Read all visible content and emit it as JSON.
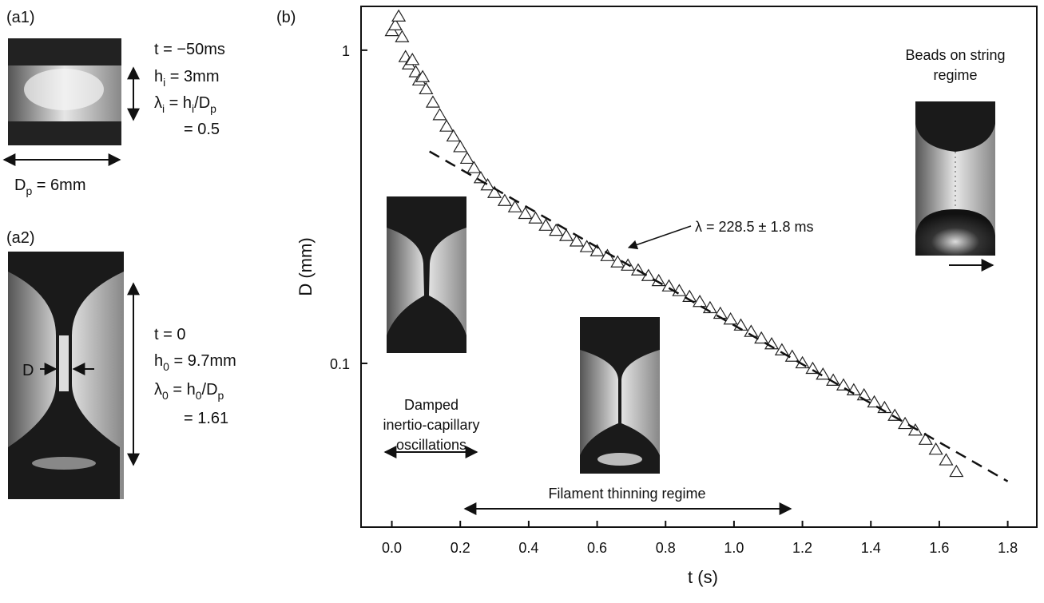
{
  "panels": {
    "a1": {
      "label": "(a1)",
      "lines": [
        [
          "t = −50ms"
        ],
        [
          "h",
          "i",
          " = 3mm"
        ],
        [
          "λ",
          "i",
          " = h",
          "i",
          "/D",
          "p"
        ],
        [
          "= 0.5"
        ]
      ],
      "width": [
        "D",
        "p",
        " = 6mm"
      ]
    },
    "a2": {
      "label": "(a2)",
      "lines": [
        [
          "t = 0"
        ],
        [
          "h",
          "0",
          " = 9.7mm"
        ],
        [
          "λ",
          "0",
          " = h",
          "0",
          "/D",
          "p"
        ],
        [
          "= 1.61"
        ]
      ],
      "diameter": "D"
    }
  },
  "chart_data": {
    "type": "scatter",
    "panel_label": "(b)",
    "xlabel": "t (s)",
    "ylabel": "D (mm)",
    "xlim": [
      -0.09,
      1.885
    ],
    "ylim": [
      0.03,
      1.38
    ],
    "log_y": true,
    "xticks": [
      {
        "value": 0,
        "label": "0.0"
      },
      0.2,
      0.4,
      0.6,
      0.8,
      {
        "value": 1,
        "label": "1.0"
      },
      1.2,
      1.4,
      1.6,
      1.8
    ],
    "yticks": [
      0.1,
      1
    ],
    "series": [
      {
        "marker": "triangle",
        "color": "#222222",
        "x": [
          0,
          0.01,
          0.02,
          0.03,
          0.04,
          0.05,
          0.06,
          0.07,
          0.08,
          0.09,
          0.1,
          0.12,
          0.14,
          0.16,
          0.18,
          0.2,
          0.22,
          0.24,
          0.26,
          0.28,
          0.3,
          0.33,
          0.36,
          0.39,
          0.42,
          0.45,
          0.48,
          0.51,
          0.54,
          0.57,
          0.6,
          0.63,
          0.66,
          0.69,
          0.72,
          0.75,
          0.78,
          0.81,
          0.84,
          0.87,
          0.9,
          0.93,
          0.96,
          0.99,
          1.02,
          1.05,
          1.08,
          1.11,
          1.14,
          1.17,
          1.2,
          1.23,
          1.26,
          1.29,
          1.32,
          1.35,
          1.38,
          1.41,
          1.44,
          1.47,
          1.5,
          1.53,
          1.56,
          1.59,
          1.62,
          1.65
        ],
        "values": [
          1.15,
          1.2,
          1.28,
          1.1,
          0.95,
          0.9,
          0.93,
          0.85,
          0.8,
          0.82,
          0.75,
          0.68,
          0.62,
          0.57,
          0.53,
          0.49,
          0.45,
          0.42,
          0.39,
          0.37,
          0.35,
          0.33,
          0.315,
          0.3,
          0.29,
          0.275,
          0.265,
          0.255,
          0.245,
          0.235,
          0.228,
          0.22,
          0.21,
          0.205,
          0.198,
          0.19,
          0.183,
          0.176,
          0.17,
          0.163,
          0.157,
          0.15,
          0.144,
          0.138,
          0.132,
          0.126,
          0.12,
          0.115,
          0.11,
          0.105,
          0.1,
          0.096,
          0.092,
          0.088,
          0.085,
          0.082,
          0.079,
          0.075,
          0.072,
          0.068,
          0.064,
          0.061,
          0.057,
          0.053,
          0.049,
          0.045
        ]
      },
      {
        "marker": "dashed-line",
        "color": "#111111",
        "x": [
          0.11,
          1.8
        ],
        "values": [
          0.475,
          0.042
        ]
      }
    ],
    "annotations": [
      [
        "λ = 228.5 ± 1.8 ms"
      ],
      [
        "Beads on string",
        "regime"
      ],
      [
        "Damped",
        "inertio-capillary",
        "oscillations"
      ],
      [
        "Filament thinning regime"
      ]
    ]
  }
}
